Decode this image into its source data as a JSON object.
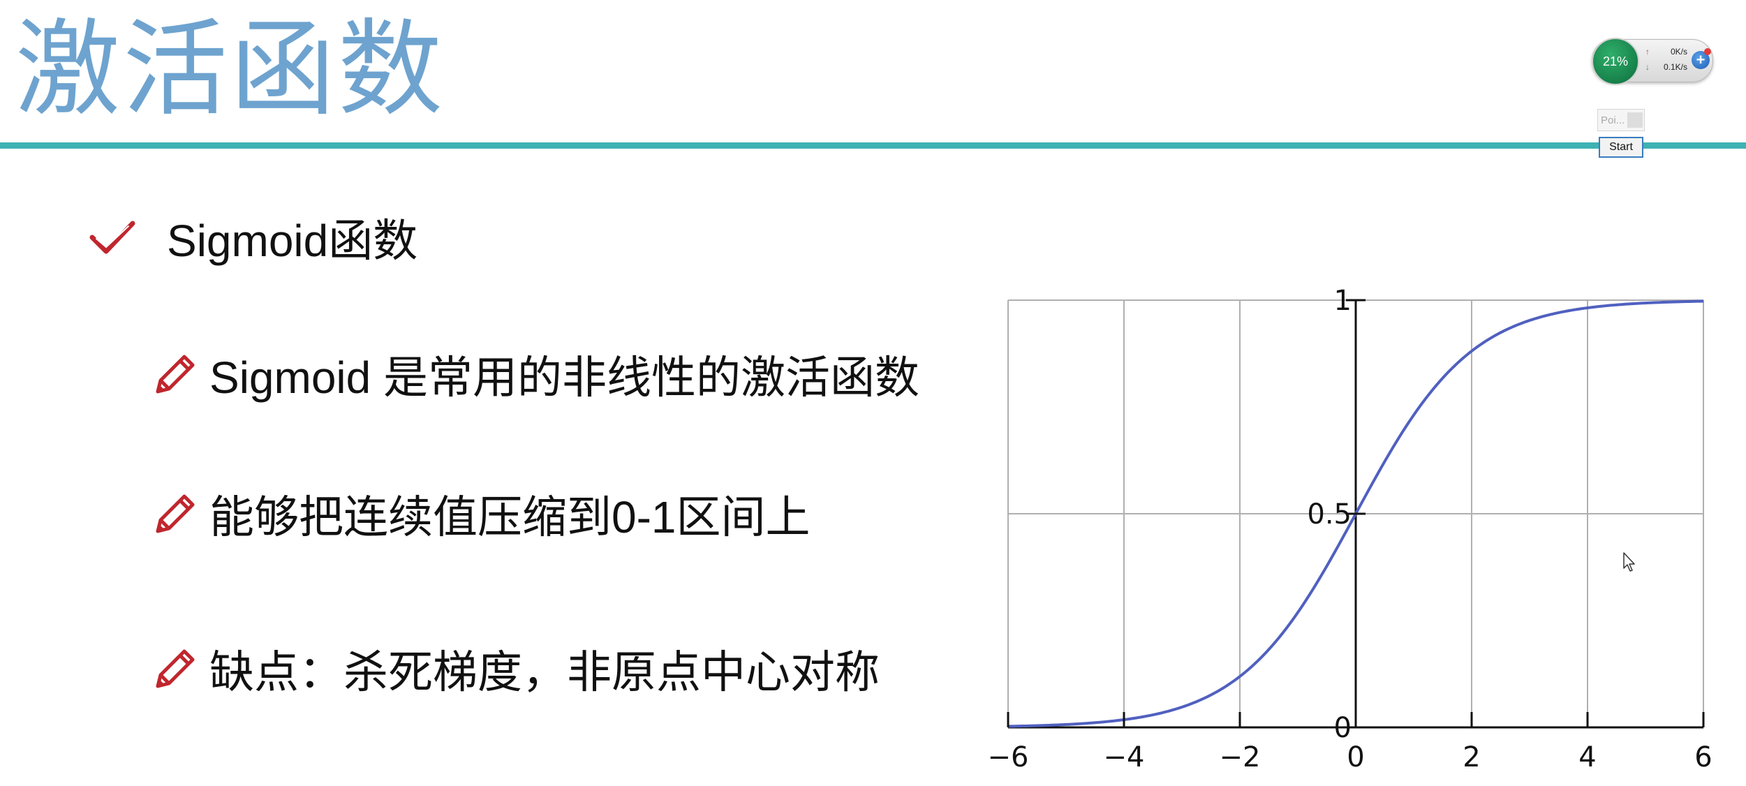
{
  "slide": {
    "title": "激活函数",
    "main_bullet": "Sigmoid函数",
    "points": [
      "Sigmoid 是常用的非线性的激活函数",
      "能够把连续值压缩到0-1区间上",
      "缺点：杀死梯度，非原点中心对称"
    ]
  },
  "overlay": {
    "net_monitor": {
      "percent": "21%",
      "upload": "0K/s",
      "download": "0.1K/s"
    },
    "poi_label": "Poi...",
    "start_label": "Start"
  },
  "colors": {
    "title": "#6ea3cf",
    "rule": "#3fb2b4",
    "icon_red": "#c0262d",
    "curve": "#5060c0",
    "grid": "#b0b0b0"
  },
  "icons": [
    "check-icon",
    "pencil-icon",
    "mouse-cursor-icon"
  ],
  "chart_data": {
    "type": "line",
    "function": "sigmoid",
    "x": [
      -6,
      -5,
      -4,
      -3,
      -2,
      -1,
      0,
      1,
      2,
      3,
      4,
      5,
      6
    ],
    "series": [
      {
        "values": [
          0.0025,
          0.0067,
          0.018,
          0.047,
          0.119,
          0.269,
          0.5,
          0.731,
          0.881,
          0.953,
          0.982,
          0.9933,
          0.9975
        ]
      }
    ],
    "xlim": [
      -6,
      6
    ],
    "ylim": [
      0,
      1
    ],
    "xticks": [
      -6,
      -4,
      -2,
      0,
      2,
      4,
      6
    ],
    "xtick_labels": [
      "−6",
      "−4",
      "−2",
      "0",
      "2",
      "4",
      "6"
    ],
    "yticks": [
      0,
      0.5,
      1
    ],
    "ytick_labels": [
      "0",
      "0.5",
      "1"
    ],
    "grid": true,
    "title": "",
    "xlabel": "",
    "ylabel": ""
  }
}
